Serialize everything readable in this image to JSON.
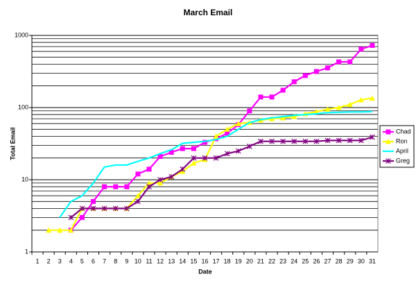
{
  "chart_data": {
    "type": "line",
    "title": "March Email",
    "x_label": "Date",
    "y_label": "Total Email",
    "categories": [
      "1",
      "2",
      "3",
      "4",
      "5",
      "6",
      "7",
      "8",
      "9",
      "10",
      "11",
      "12",
      "13",
      "14",
      "15",
      "16",
      "17",
      "18",
      "19",
      "20",
      "21",
      "22",
      "23",
      "24",
      "25",
      "26",
      "27",
      "28",
      "29",
      "30",
      "31"
    ],
    "ylim": [
      1,
      1000
    ],
    "yticks": [
      1,
      10,
      100,
      1000
    ],
    "log_scale": true,
    "grid": true,
    "minor_grid": true,
    "legend": "right",
    "series": [
      {
        "name": "Chad",
        "color": "#ff00ff",
        "marker": "square",
        "values": [
          null,
          null,
          null,
          2,
          3,
          5,
          8,
          8,
          8,
          12,
          14,
          21,
          24,
          27,
          27,
          33,
          37,
          44,
          58,
          90,
          140,
          140,
          174,
          228,
          278,
          316,
          355,
          430,
          430,
          645,
          725
        ]
      },
      {
        "name": "Ron",
        "color": "#ffff00",
        "marker": "triangle",
        "values": [
          null,
          2,
          2,
          2,
          4,
          4,
          4,
          4,
          4,
          6,
          9,
          9,
          11,
          13,
          17,
          19,
          40,
          50,
          60,
          62,
          67,
          70,
          72,
          75,
          82,
          88,
          95,
          100,
          110,
          128,
          135
        ]
      },
      {
        "name": "April",
        "color": "#00ffff",
        "marker": "none",
        "values": [
          null,
          null,
          3,
          5,
          6,
          9,
          15,
          16,
          16,
          18,
          20,
          23,
          26,
          32,
          33,
          34,
          36,
          40,
          50,
          62,
          68,
          72,
          75,
          78,
          80,
          82,
          85,
          86,
          87,
          87,
          88
        ]
      },
      {
        "name": "Greg",
        "color": "#800080",
        "marker": "star",
        "values": [
          null,
          null,
          null,
          3,
          4,
          4,
          4,
          4,
          4,
          5,
          8,
          10,
          11,
          14,
          20,
          20,
          20,
          23,
          25,
          29,
          34,
          34,
          34,
          34,
          34,
          34,
          35,
          35,
          35,
          35,
          39
        ]
      }
    ]
  }
}
